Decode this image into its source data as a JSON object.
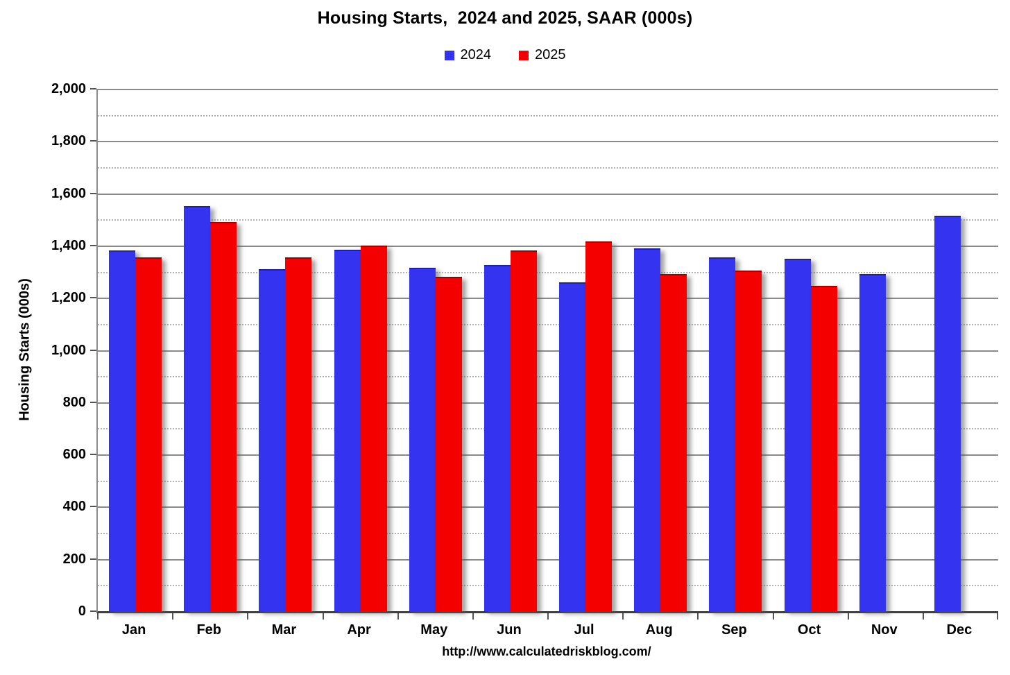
{
  "title": "Housing Starts,  2024 and 2025, SAAR (000s)",
  "footer_url": "http://www.calculatedriskblog.com/",
  "colors": {
    "series_2024": "#3333f0",
    "series_2025": "#f40000",
    "major_grid": "#8a8a8a",
    "minor_grid": "#b3b3b3",
    "axis": "#404040"
  },
  "chart_data": {
    "type": "bar",
    "title": "Housing Starts,  2024 and 2025, SAAR (000s)",
    "xlabel": "",
    "ylabel": "Housing Starts (000s)",
    "ylim": [
      0,
      2000
    ],
    "ytick_step": 200,
    "minor_ytick_step": 100,
    "grid": true,
    "legend_position": "top-center",
    "y_ticks": [
      0,
      200,
      400,
      600,
      800,
      1000,
      1200,
      1400,
      1600,
      1800,
      2000
    ],
    "y_tick_labels": [
      "0",
      "200",
      "400",
      "600",
      "800",
      "1,000",
      "1,200",
      "1,400",
      "1,600",
      "1,800",
      "2,000"
    ],
    "categories": [
      "Jan",
      "Feb",
      "Mar",
      "Apr",
      "May",
      "Jun",
      "Jul",
      "Aug",
      "Sep",
      "Oct",
      "Nov",
      "Dec"
    ],
    "series": [
      {
        "name": "2024",
        "color": "#3333f0",
        "values": [
          1380,
          1550,
          1310,
          1385,
          1315,
          1325,
          1260,
          1390,
          1355,
          1350,
          1290,
          1515
        ]
      },
      {
        "name": "2025",
        "color": "#f40000",
        "values": [
          1355,
          1490,
          1355,
          1400,
          1280,
          1380,
          1415,
          1290,
          1305,
          1245,
          null,
          null
        ]
      }
    ]
  }
}
